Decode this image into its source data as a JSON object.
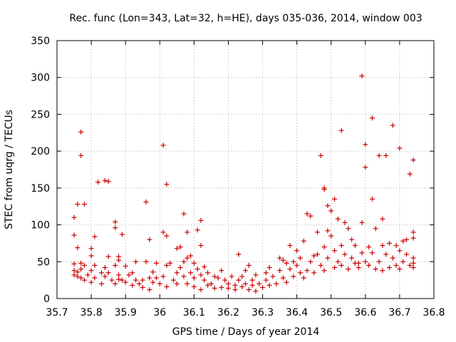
{
  "chart_data": {
    "type": "scatter",
    "title": "Rec. func (Lon=343, Lat=32, h=HE), days 035-036, 2014, window 003",
    "xlabel": "GPS time / Days of year 2014",
    "ylabel": "STEC from uqrg / TECUs",
    "xlim": [
      35.7,
      36.8
    ],
    "ylim": [
      0,
      350
    ],
    "xticks": [
      35.7,
      35.8,
      35.9,
      36.0,
      36.1,
      36.2,
      36.3,
      36.4,
      36.5,
      36.6,
      36.7,
      36.8
    ],
    "xtick_labels": [
      "35.7",
      "35.8",
      "35.9",
      "36",
      "36.1",
      "36.2",
      "36.3",
      "36.4",
      "36.5",
      "36.6",
      "36.7",
      "36.8"
    ],
    "yticks": [
      0,
      50,
      100,
      150,
      200,
      250,
      300,
      350
    ],
    "ytick_labels": [
      "0",
      "50",
      "100",
      "150",
      "200",
      "250",
      "300",
      "350"
    ],
    "grid": true,
    "marker": "+",
    "color": "#cc0000",
    "series": [
      {
        "name": "STEC",
        "points": [
          [
            35.75,
            47
          ],
          [
            35.75,
            110
          ],
          [
            35.75,
            86
          ],
          [
            35.75,
            38
          ],
          [
            35.75,
            32
          ],
          [
            35.76,
            128
          ],
          [
            35.76,
            69
          ],
          [
            35.76,
            30
          ],
          [
            35.76,
            36
          ],
          [
            35.77,
            226
          ],
          [
            35.77,
            194
          ],
          [
            35.77,
            48
          ],
          [
            35.77,
            40
          ],
          [
            35.77,
            28
          ],
          [
            35.78,
            128
          ],
          [
            35.78,
            45
          ],
          [
            35.78,
            25
          ],
          [
            35.79,
            32
          ],
          [
            35.8,
            68
          ],
          [
            35.8,
            58
          ],
          [
            35.8,
            38
          ],
          [
            35.8,
            22
          ],
          [
            35.81,
            84
          ],
          [
            35.81,
            45
          ],
          [
            35.81,
            28
          ],
          [
            35.82,
            158
          ],
          [
            35.83,
            35
          ],
          [
            35.83,
            20
          ],
          [
            35.84,
            160
          ],
          [
            35.84,
            42
          ],
          [
            35.84,
            30
          ],
          [
            35.85,
            159
          ],
          [
            35.85,
            57
          ],
          [
            35.85,
            35
          ],
          [
            35.86,
            25
          ],
          [
            35.87,
            104
          ],
          [
            35.87,
            96
          ],
          [
            35.87,
            45
          ],
          [
            35.87,
            20
          ],
          [
            35.88,
            57
          ],
          [
            35.88,
            52
          ],
          [
            35.88,
            32
          ],
          [
            35.88,
            26
          ],
          [
            35.89,
            87
          ],
          [
            35.89,
            25
          ],
          [
            35.9,
            44
          ],
          [
            35.9,
            22
          ],
          [
            35.91,
            32
          ],
          [
            35.92,
            35
          ],
          [
            35.92,
            18
          ],
          [
            35.93,
            25
          ],
          [
            35.93,
            50
          ],
          [
            35.94,
            20
          ],
          [
            35.95,
            25
          ],
          [
            35.95,
            15
          ],
          [
            35.96,
            131
          ],
          [
            35.96,
            50
          ],
          [
            35.97,
            28
          ],
          [
            35.97,
            80
          ],
          [
            35.97,
            12
          ],
          [
            35.98,
            36
          ],
          [
            35.98,
            22
          ],
          [
            35.99,
            48
          ],
          [
            35.99,
            28
          ],
          [
            36.0,
            20
          ],
          [
            36.01,
            208
          ],
          [
            36.01,
            90
          ],
          [
            36.01,
            30
          ],
          [
            36.02,
            155
          ],
          [
            36.02,
            85
          ],
          [
            36.02,
            45
          ],
          [
            36.02,
            16
          ],
          [
            36.03,
            48
          ],
          [
            36.04,
            25
          ],
          [
            36.05,
            68
          ],
          [
            36.05,
            35
          ],
          [
            36.05,
            20
          ],
          [
            36.06,
            70
          ],
          [
            36.06,
            42
          ],
          [
            36.07,
            115
          ],
          [
            36.07,
            50
          ],
          [
            36.07,
            30
          ],
          [
            36.08,
            90
          ],
          [
            36.08,
            55
          ],
          [
            36.08,
            20
          ],
          [
            36.09,
            58
          ],
          [
            36.09,
            35
          ],
          [
            36.1,
            48
          ],
          [
            36.1,
            28
          ],
          [
            36.1,
            16
          ],
          [
            36.11,
            93
          ],
          [
            36.11,
            40
          ],
          [
            36.12,
            106
          ],
          [
            36.12,
            72
          ],
          [
            36.12,
            32
          ],
          [
            36.12,
            12
          ],
          [
            36.13,
            43
          ],
          [
            36.13,
            25
          ],
          [
            36.14,
            35
          ],
          [
            36.14,
            18
          ],
          [
            36.15,
            20
          ],
          [
            36.16,
            30
          ],
          [
            36.16,
            14
          ],
          [
            36.17,
            28
          ],
          [
            36.18,
            38
          ],
          [
            36.18,
            15
          ],
          [
            36.19,
            25
          ],
          [
            36.2,
            20
          ],
          [
            36.2,
            14
          ],
          [
            36.21,
            30
          ],
          [
            36.22,
            18
          ],
          [
            36.22,
            12
          ],
          [
            36.23,
            60
          ],
          [
            36.23,
            25
          ],
          [
            36.24,
            30
          ],
          [
            36.24,
            16
          ],
          [
            36.25,
            38
          ],
          [
            36.25,
            20
          ],
          [
            36.26,
            45
          ],
          [
            36.26,
            12
          ],
          [
            36.27,
            25
          ],
          [
            36.27,
            18
          ],
          [
            36.28,
            32
          ],
          [
            36.28,
            10
          ],
          [
            36.29,
            20
          ],
          [
            36.3,
            15
          ],
          [
            36.31,
            35
          ],
          [
            36.31,
            25
          ],
          [
            36.32,
            42
          ],
          [
            36.32,
            18
          ],
          [
            36.33,
            30
          ],
          [
            36.34,
            20
          ],
          [
            36.35,
            55
          ],
          [
            36.35,
            38
          ],
          [
            36.36,
            52
          ],
          [
            36.36,
            28
          ],
          [
            36.37,
            48
          ],
          [
            36.37,
            22
          ],
          [
            36.38,
            72
          ],
          [
            36.38,
            40
          ],
          [
            36.39,
            50
          ],
          [
            36.39,
            30
          ],
          [
            36.4,
            65
          ],
          [
            36.4,
            45
          ],
          [
            36.41,
            55
          ],
          [
            36.41,
            35
          ],
          [
            36.42,
            78
          ],
          [
            36.42,
            28
          ],
          [
            36.43,
            115
          ],
          [
            36.43,
            38
          ],
          [
            36.44,
            112
          ],
          [
            36.44,
            50
          ],
          [
            36.45,
            58
          ],
          [
            36.45,
            35
          ],
          [
            36.46,
            90
          ],
          [
            36.46,
            60
          ],
          [
            36.47,
            194
          ],
          [
            36.47,
            45
          ],
          [
            36.48,
            150
          ],
          [
            36.48,
            148
          ],
          [
            36.48,
            70
          ],
          [
            36.48,
            38
          ],
          [
            36.49,
            126
          ],
          [
            36.49,
            92
          ],
          [
            36.49,
            55
          ],
          [
            36.5,
            119
          ],
          [
            36.5,
            85
          ],
          [
            36.51,
            135
          ],
          [
            36.51,
            65
          ],
          [
            36.51,
            42
          ],
          [
            36.52,
            108
          ],
          [
            36.52,
            50
          ],
          [
            36.53,
            228
          ],
          [
            36.53,
            72
          ],
          [
            36.53,
            45
          ],
          [
            36.54,
            103
          ],
          [
            36.54,
            60
          ],
          [
            36.55,
            95
          ],
          [
            36.55,
            40
          ],
          [
            36.56,
            80
          ],
          [
            36.56,
            55
          ],
          [
            36.57,
            72
          ],
          [
            36.57,
            48
          ],
          [
            36.58,
            48
          ],
          [
            36.58,
            42
          ],
          [
            36.59,
            302
          ],
          [
            36.59,
            103
          ],
          [
            36.59,
            62
          ],
          [
            36.6,
            209
          ],
          [
            36.6,
            178
          ],
          [
            36.6,
            50
          ],
          [
            36.61,
            70
          ],
          [
            36.61,
            45
          ],
          [
            36.62,
            245
          ],
          [
            36.62,
            135
          ],
          [
            36.62,
            62
          ],
          [
            36.63,
            95
          ],
          [
            36.63,
            40
          ],
          [
            36.64,
            194
          ],
          [
            36.64,
            50
          ],
          [
            36.65,
            108
          ],
          [
            36.65,
            72
          ],
          [
            36.65,
            38
          ],
          [
            36.66,
            194
          ],
          [
            36.66,
            60
          ],
          [
            36.67,
            75
          ],
          [
            36.67,
            42
          ],
          [
            36.68,
            235
          ],
          [
            36.68,
            55
          ],
          [
            36.69,
            72
          ],
          [
            36.69,
            45
          ],
          [
            36.7,
            204
          ],
          [
            36.7,
            65
          ],
          [
            36.7,
            40
          ],
          [
            36.71,
            78
          ],
          [
            36.71,
            50
          ],
          [
            36.72,
            80
          ],
          [
            36.72,
            60
          ],
          [
            36.73,
            169
          ],
          [
            36.73,
            45
          ],
          [
            36.74,
            188
          ],
          [
            36.74,
            90
          ],
          [
            36.74,
            82
          ],
          [
            36.74,
            55
          ],
          [
            36.74,
            48
          ],
          [
            36.74,
            42
          ]
        ]
      }
    ]
  }
}
